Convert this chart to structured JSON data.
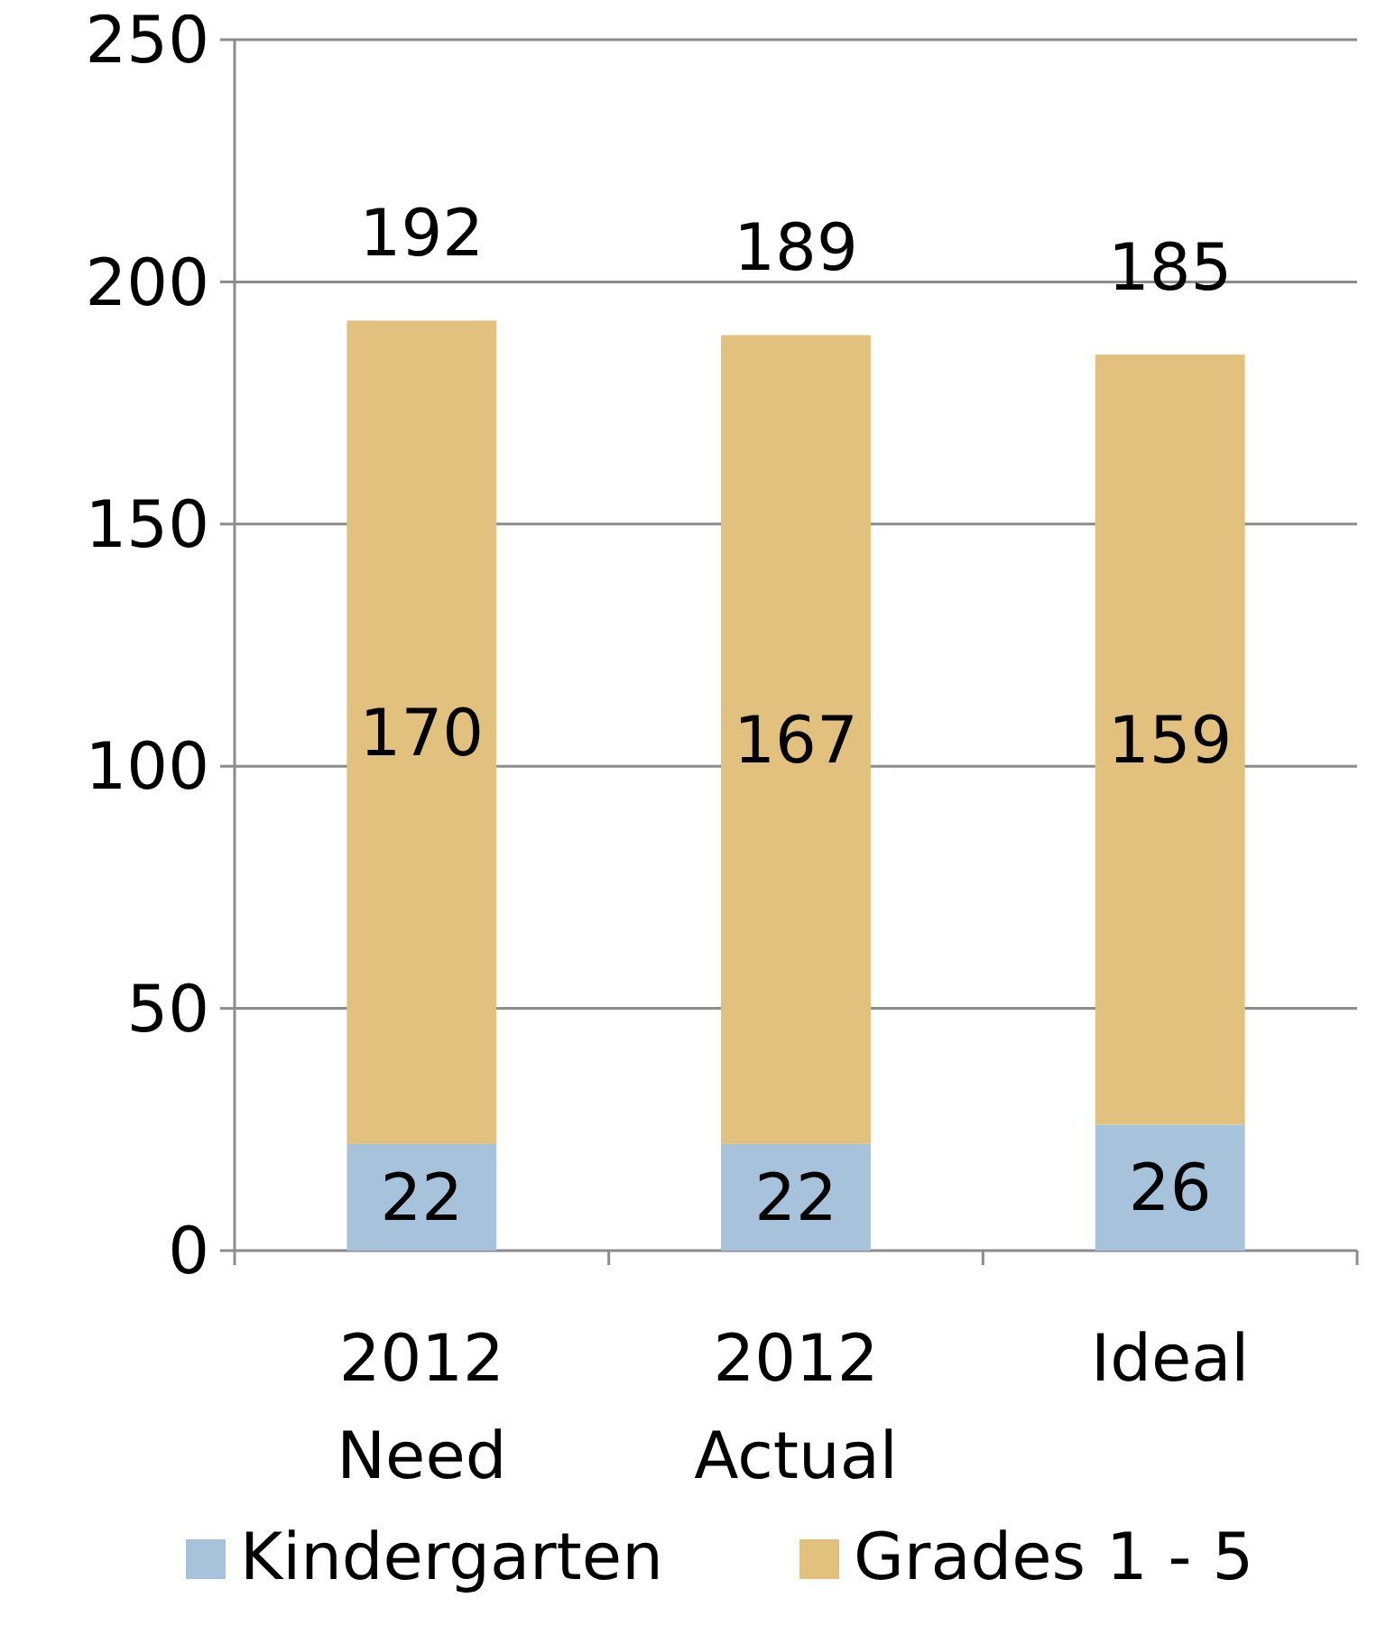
{
  "chart_data": {
    "type": "bar",
    "stacked": true,
    "categories": [
      "2012 Need",
      "2012 Actual",
      "Ideal"
    ],
    "series": [
      {
        "name": "Kindergarten",
        "color": "#a7c3db",
        "values": [
          22,
          22,
          26
        ]
      },
      {
        "name": "Grades 1 - 5",
        "color": "#e2c07e",
        "values": [
          170,
          167,
          159
        ]
      }
    ],
    "ylim": [
      0,
      250
    ],
    "yticks": [
      0,
      50,
      100,
      150,
      200,
      250
    ],
    "grid": "y",
    "legend": "bottom",
    "data_labels": true,
    "totals": [
      "192",
      "189",
      "185"
    ]
  }
}
